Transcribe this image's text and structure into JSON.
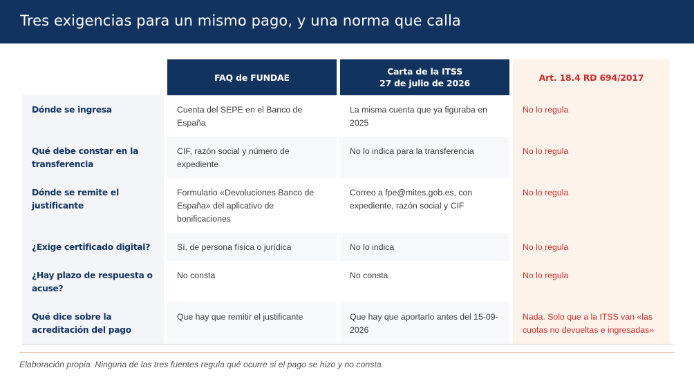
{
  "title": "Tres exigencias para un mismo pago, y una norma que calla",
  "columns": {
    "col1": "FAQ de FUNDAE",
    "col2_line1": "Carta de la ITSS",
    "col2_line2": "27 de julio de 2026",
    "col3": "Art. 18.4 RD 694/2017"
  },
  "rows": [
    {
      "question": "Dónde se ingresa",
      "fundae": "Cuenta del SEPE en el Banco de España",
      "itss": "La misma cuenta que ya figuraba en 2025",
      "rd": "No lo regula"
    },
    {
      "question": "Qué debe constar en la transferencia",
      "fundae": "CIF, razón social y número de expediente",
      "itss": "No lo indica para la transferencia",
      "rd": "No lo regula"
    },
    {
      "question": "Dónde se remite el justificante",
      "fundae": "Formulario «Devoluciones Banco de España» del aplicativo de bonificaciones",
      "itss": "Correo a fpe@mites.gob.es, con expediente, razón social y CIF",
      "rd": "No lo regula"
    },
    {
      "question": "¿Exige certificado digital?",
      "fundae": "Sí, de persona física o jurídica",
      "itss": "No lo indica",
      "rd": "No lo regula"
    },
    {
      "question": "¿Hay plazo de respuesta o acuse?",
      "fundae": "No consta",
      "itss": "No consta",
      "rd": "No lo regula"
    },
    {
      "question": "Qué dice sobre la acreditación del pago",
      "fundae": "Que hay que remitir el justificante",
      "itss": "Que hay que aportarlo antes del 15-09-2026",
      "rd": "Nada. Solo que a la ITSS van «las cuotas no devueltas e ingresadas»"
    }
  ],
  "footnote": "Elaboración propia. Ninguna de las tres fuentes regula qué ocurre si el pago se hizo y no consta."
}
